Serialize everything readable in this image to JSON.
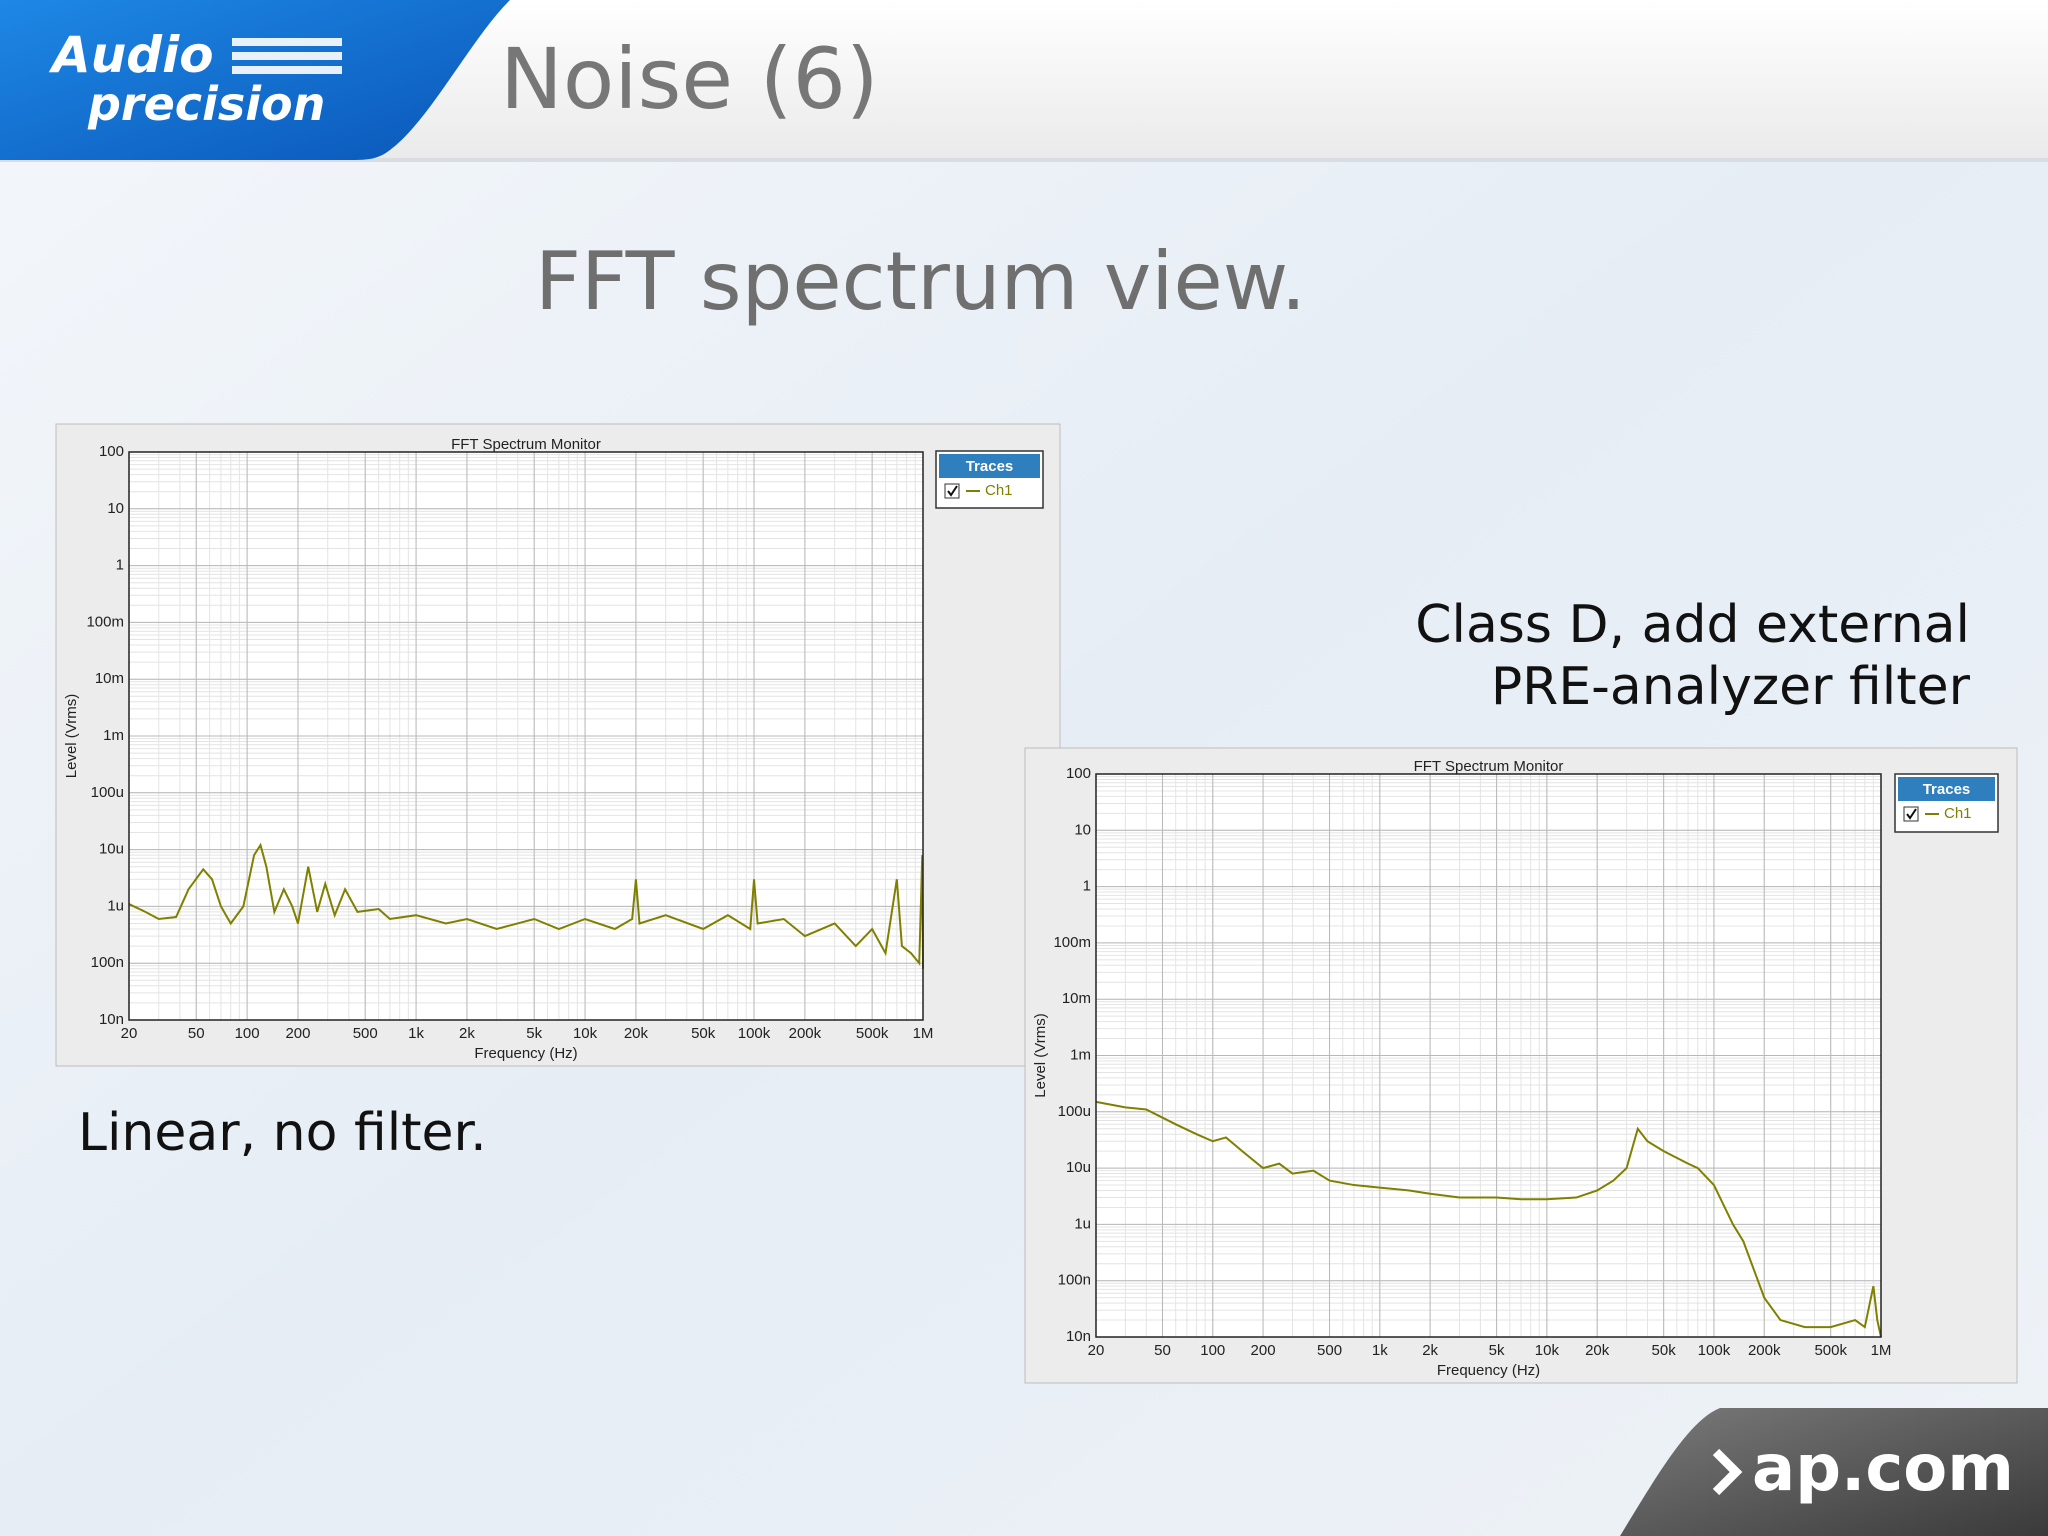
{
  "slide": {
    "title": "Noise (6)",
    "subtitle": "FFT spectrum view.",
    "caption_left": "Linear, no filter.",
    "caption_right": [
      "Class D, add external",
      "PRE-analyzer filter"
    ],
    "logo": [
      "Audio",
      "precision"
    ],
    "footer": "ap.com"
  },
  "chart_data": [
    {
      "type": "line",
      "title": "FFT Spectrum Monitor",
      "xlabel": "Frequency (Hz)",
      "ylabel": "Level (Vrms)",
      "legend_title": "Traces",
      "log_x": true,
      "log_y": true,
      "grid": true,
      "x": [
        20,
        25,
        30,
        38,
        45,
        55,
        62,
        70,
        80,
        95,
        110,
        120,
        130,
        145,
        165,
        185,
        200,
        230,
        260,
        290,
        330,
        380,
        450,
        600,
        700,
        1000,
        1500,
        2000,
        3000,
        5000,
        7000,
        10000,
        15000,
        19000,
        20000,
        21000,
        30000,
        50000,
        70000,
        95000,
        100000,
        105000,
        150000,
        200000,
        300000,
        400000,
        500000,
        600000,
        700000,
        750000,
        850000,
        950000,
        990000,
        1000000
      ],
      "series": [
        {
          "name": "Ch1",
          "color": "#808000",
          "values": [
            1.1e-06,
            8e-07,
            6e-07,
            6.5e-07,
            2e-06,
            4.5e-06,
            3e-06,
            1e-06,
            5e-07,
            1e-06,
            8e-06,
            1.2e-05,
            5e-06,
            8e-07,
            2e-06,
            1e-06,
            5e-07,
            5e-06,
            8e-07,
            2.5e-06,
            7e-07,
            2e-06,
            8e-07,
            9e-07,
            6e-07,
            7e-07,
            5e-07,
            6e-07,
            4e-07,
            6e-07,
            4e-07,
            6e-07,
            4e-07,
            6e-07,
            3e-06,
            5e-07,
            7e-07,
            4e-07,
            7e-07,
            4e-07,
            3e-06,
            5e-07,
            6e-07,
            3e-07,
            5e-07,
            2e-07,
            4e-07,
            1.5e-07,
            3e-06,
            2e-07,
            1.5e-07,
            1e-07,
            8e-06,
            8e-08
          ]
        }
      ],
      "xlim": [
        20,
        1000000
      ],
      "xticks": [
        20,
        50,
        100,
        200,
        500,
        {
          "value": 1000,
          "label": "1k"
        },
        {
          "value": 2000,
          "label": "2k"
        },
        {
          "value": 5000,
          "label": "5k"
        },
        {
          "value": 10000,
          "label": "10k"
        },
        {
          "value": 20000,
          "label": "20k"
        },
        {
          "value": 50000,
          "label": "50k"
        },
        {
          "value": 100000,
          "label": "100k"
        },
        {
          "value": 200000,
          "label": "200k"
        },
        {
          "value": 500000,
          "label": "500k"
        },
        {
          "value": 1000000,
          "label": "1M"
        }
      ],
      "ylim": [
        1e-08,
        100
      ],
      "yticks": [
        {
          "value": 1e-08,
          "label": "10n"
        },
        {
          "value": 1e-07,
          "label": "100n"
        },
        {
          "value": 1e-06,
          "label": "1u"
        },
        {
          "value": 1e-05,
          "label": "10u"
        },
        {
          "value": 0.0001,
          "label": "100u"
        },
        {
          "value": 0.001,
          "label": "1m"
        },
        {
          "value": 0.01,
          "label": "10m"
        },
        {
          "value": 0.1,
          "label": "100m"
        },
        1,
        10,
        100
      ]
    },
    {
      "type": "line",
      "title": "FFT Spectrum Monitor",
      "xlabel": "Frequency (Hz)",
      "ylabel": "Level (Vrms)",
      "legend_title": "Traces",
      "log_x": true,
      "log_y": true,
      "grid": true,
      "x": [
        20,
        30,
        40,
        60,
        80,
        100,
        120,
        150,
        200,
        250,
        300,
        400,
        500,
        700,
        1000,
        1500,
        2000,
        3000,
        5000,
        7000,
        10000,
        15000,
        20000,
        25000,
        30000,
        35000,
        40000,
        50000,
        70000,
        80000,
        100000,
        130000,
        150000,
        200000,
        250000,
        350000,
        500000,
        700000,
        800000,
        900000,
        950000,
        1000000
      ],
      "series": [
        {
          "name": "Ch1",
          "color": "#808000",
          "values": [
            0.00015,
            0.00012,
            0.00011,
            6e-05,
            4e-05,
            3e-05,
            3.5e-05,
            2e-05,
            1e-05,
            1.2e-05,
            8e-06,
            9e-06,
            6e-06,
            5e-06,
            4.5e-06,
            4e-06,
            3.5e-06,
            3e-06,
            3e-06,
            2.8e-06,
            2.8e-06,
            3e-06,
            4e-06,
            6e-06,
            1e-05,
            5e-05,
            3e-05,
            2e-05,
            1.2e-05,
            1e-05,
            5e-06,
            1e-06,
            5e-07,
            5e-08,
            2e-08,
            1.5e-08,
            1.5e-08,
            2e-08,
            1.5e-08,
            8e-08,
            2e-08,
            1e-08
          ]
        }
      ],
      "xlim": [
        20,
        1000000
      ],
      "xticks": [
        20,
        50,
        100,
        200,
        500,
        {
          "value": 1000,
          "label": "1k"
        },
        {
          "value": 2000,
          "label": "2k"
        },
        {
          "value": 5000,
          "label": "5k"
        },
        {
          "value": 10000,
          "label": "10k"
        },
        {
          "value": 20000,
          "label": "20k"
        },
        {
          "value": 50000,
          "label": "50k"
        },
        {
          "value": 100000,
          "label": "100k"
        },
        {
          "value": 200000,
          "label": "200k"
        },
        {
          "value": 500000,
          "label": "500k"
        },
        {
          "value": 1000000,
          "label": "1M"
        }
      ],
      "ylim": [
        1e-08,
        100
      ],
      "yticks": [
        {
          "value": 1e-08,
          "label": "10n"
        },
        {
          "value": 1e-07,
          "label": "100n"
        },
        {
          "value": 1e-06,
          "label": "1u"
        },
        {
          "value": 1e-05,
          "label": "10u"
        },
        {
          "value": 0.0001,
          "label": "100u"
        },
        {
          "value": 0.001,
          "label": "1m"
        },
        {
          "value": 0.01,
          "label": "10m"
        },
        {
          "value": 0.1,
          "label": "100m"
        },
        1,
        10,
        100
      ]
    }
  ]
}
